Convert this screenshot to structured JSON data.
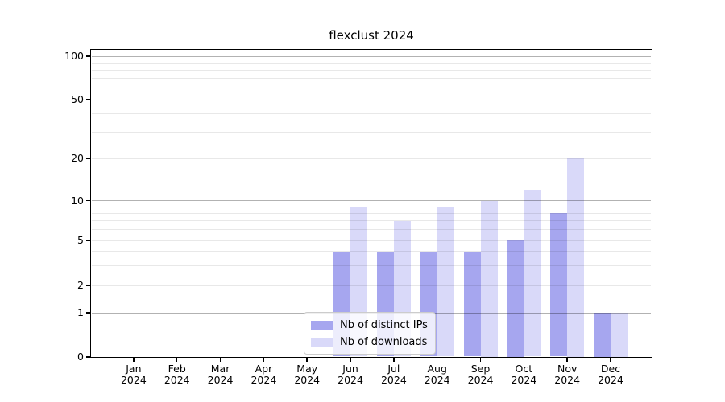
{
  "figure": {
    "title": "flexclust 2024"
  },
  "chart_data": {
    "type": "bar",
    "title": "flexclust 2024",
    "categories": [
      "Jan 2024",
      "Feb 2024",
      "Mar 2024",
      "Apr 2024",
      "May 2024",
      "Jun 2024",
      "Jul 2024",
      "Aug 2024",
      "Sep 2024",
      "Oct 2024",
      "Nov 2024",
      "Dec 2024"
    ],
    "series": [
      {
        "name": "Nb of distinct IPs",
        "color": "#a6a6ef",
        "values": [
          0,
          0,
          0,
          0,
          0,
          4,
          4,
          4,
          4,
          5,
          8,
          1
        ]
      },
      {
        "name": "Nb of downloads",
        "color": "#d9d9f9",
        "values": [
          0,
          0,
          0,
          0,
          0,
          9,
          7,
          9,
          10,
          12,
          20,
          1
        ]
      }
    ],
    "xlabel": "",
    "ylabel": "",
    "yscale": "log1p",
    "ylim": [
      0,
      130
    ],
    "yticks": [
      {
        "value": 0,
        "label": "0"
      },
      {
        "value": 1,
        "label": "1"
      },
      {
        "value": 2,
        "label": "2"
      },
      {
        "value": 5,
        "label": "5"
      },
      {
        "value": 10,
        "label": "10"
      },
      {
        "value": 20,
        "label": "20"
      },
      {
        "value": 50,
        "label": "50"
      },
      {
        "value": 100,
        "label": "100"
      }
    ],
    "major_gridlines": [
      1,
      10,
      100
    ],
    "minor_gridlines": [
      2,
      3,
      4,
      5,
      6,
      7,
      8,
      9,
      20,
      30,
      40,
      50,
      60,
      70,
      80,
      90
    ],
    "grid": "horizontal",
    "legend_position": "lower center inside"
  },
  "colors": {
    "background": "#ffffff",
    "spine": "#000000",
    "text": "#000000",
    "major_grid": "#b3b3b3",
    "minor_grid": "#e8e8e8",
    "bar_distinct_ips": "#a6a6ef",
    "bar_downloads": "#d9d9f9",
    "legend_border": "#cccccc",
    "legend_background": "#ffffff"
  }
}
